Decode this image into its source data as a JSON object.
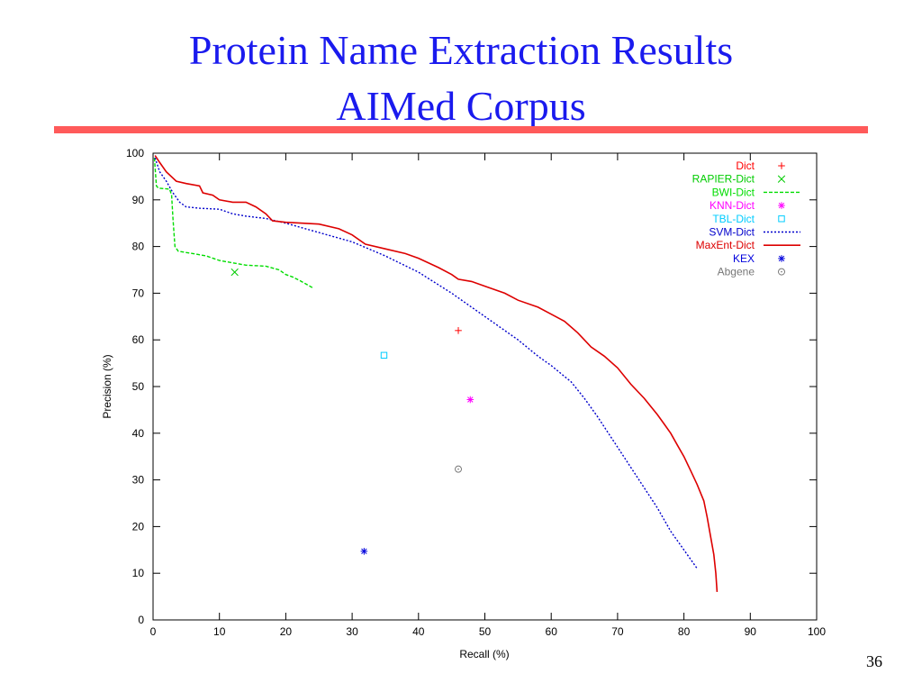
{
  "slide": {
    "title_line1": "Protein Name Extraction Results",
    "title_line2": "AIMed Corpus",
    "slide_number": "36",
    "title_color": "#1a1aee",
    "rule_color": "#ff5a5a"
  },
  "chart_data": {
    "type": "line",
    "xlabel": "Recall (%)",
    "ylabel": "Precision (%)",
    "xlim": [
      0,
      100
    ],
    "ylim": [
      0,
      100
    ],
    "xticks": [
      0,
      10,
      20,
      30,
      40,
      50,
      60,
      70,
      80,
      90,
      100
    ],
    "yticks": [
      0,
      10,
      20,
      30,
      40,
      50,
      60,
      70,
      80,
      90,
      100
    ],
    "grid": false,
    "legend_position": "top-right",
    "series": [
      {
        "name": "Dict",
        "kind": "point",
        "marker": "plus",
        "color": "#ff0000",
        "points": [
          [
            46,
            62
          ]
        ]
      },
      {
        "name": "RAPIER-Dict",
        "kind": "point",
        "marker": "cross",
        "color": "#00cc00",
        "points": [
          [
            12.3,
            74.5
          ]
        ]
      },
      {
        "name": "BWI-Dict",
        "kind": "line",
        "dash": "dashed",
        "color": "#00dd00",
        "points": [
          [
            0.2,
            99
          ],
          [
            0.5,
            93
          ],
          [
            0.8,
            92.5
          ],
          [
            2.5,
            92.3
          ],
          [
            2.8,
            91
          ],
          [
            3,
            86
          ],
          [
            3.3,
            80
          ],
          [
            3.8,
            79
          ],
          [
            6,
            78.5
          ],
          [
            8,
            78
          ],
          [
            10,
            77
          ],
          [
            12,
            76.5
          ],
          [
            14,
            76
          ],
          [
            17,
            75.8
          ],
          [
            19,
            75
          ],
          [
            20,
            74
          ],
          [
            21,
            73.5
          ],
          [
            22,
            72.8
          ],
          [
            23,
            72
          ],
          [
            24,
            71.2
          ]
        ]
      },
      {
        "name": "KNN-Dict",
        "kind": "point",
        "marker": "star",
        "color": "#ff00ff",
        "points": [
          [
            47.8,
            47.2
          ]
        ]
      },
      {
        "name": "TBL-Dict",
        "kind": "point",
        "marker": "square",
        "color": "#00ccff",
        "points": [
          [
            34.8,
            56.7
          ]
        ]
      },
      {
        "name": "SVM-Dict",
        "kind": "line",
        "dash": "dotted",
        "color": "#0000cc",
        "points": [
          [
            0.3,
            99
          ],
          [
            1,
            96
          ],
          [
            2,
            94
          ],
          [
            3,
            91.5
          ],
          [
            4,
            89.5
          ],
          [
            5,
            88.5
          ],
          [
            7,
            88.2
          ],
          [
            10,
            88
          ],
          [
            12,
            87
          ],
          [
            14,
            86.5
          ],
          [
            17,
            86
          ],
          [
            20,
            85
          ],
          [
            25,
            83
          ],
          [
            30,
            81
          ],
          [
            35,
            78
          ],
          [
            40,
            74.5
          ],
          [
            45,
            70
          ],
          [
            50,
            65
          ],
          [
            55,
            60
          ],
          [
            58,
            56.5
          ],
          [
            60,
            54.5
          ],
          [
            63,
            51
          ],
          [
            65,
            47.5
          ],
          [
            67,
            43.5
          ],
          [
            70,
            37
          ],
          [
            73,
            30.5
          ],
          [
            76,
            24
          ],
          [
            78,
            19
          ],
          [
            80,
            15
          ],
          [
            82,
            11
          ]
        ]
      },
      {
        "name": "MaxEnt-Dict",
        "kind": "line",
        "dash": "solid",
        "color": "#dd0000",
        "points": [
          [
            0.3,
            99.5
          ],
          [
            1,
            98
          ],
          [
            2,
            96
          ],
          [
            3.5,
            94
          ],
          [
            5,
            93.5
          ],
          [
            7,
            93
          ],
          [
            7.5,
            91.5
          ],
          [
            9,
            91
          ],
          [
            10,
            90
          ],
          [
            12,
            89.5
          ],
          [
            14,
            89.5
          ],
          [
            15.5,
            88.5
          ],
          [
            17,
            87
          ],
          [
            18,
            85.5
          ],
          [
            20,
            85.2
          ],
          [
            25,
            84.8
          ],
          [
            28,
            83.8
          ],
          [
            30,
            82.5
          ],
          [
            32,
            80.5
          ],
          [
            35,
            79.5
          ],
          [
            38,
            78.5
          ],
          [
            40,
            77.5
          ],
          [
            43,
            75.5
          ],
          [
            45,
            74
          ],
          [
            46,
            73
          ],
          [
            48,
            72.5
          ],
          [
            50,
            71.5
          ],
          [
            53,
            70
          ],
          [
            55,
            68.5
          ],
          [
            58,
            67
          ],
          [
            60,
            65.5
          ],
          [
            62,
            64
          ],
          [
            64,
            61.5
          ],
          [
            66,
            58.5
          ],
          [
            68,
            56.5
          ],
          [
            70,
            54
          ],
          [
            72,
            50.5
          ],
          [
            74,
            47.5
          ],
          [
            76,
            44
          ],
          [
            77,
            42
          ],
          [
            78,
            40
          ],
          [
            79,
            37.5
          ],
          [
            80,
            35
          ],
          [
            81,
            32
          ],
          [
            82,
            29
          ],
          [
            83,
            25.5
          ],
          [
            83.5,
            22
          ],
          [
            84,
            18
          ],
          [
            84.5,
            14
          ],
          [
            84.8,
            10
          ],
          [
            85,
            6
          ]
        ]
      },
      {
        "name": "KEX",
        "kind": "point",
        "marker": "star",
        "color": "#0000dd",
        "points": [
          [
            31.8,
            14.7
          ]
        ]
      },
      {
        "name": "Abgene",
        "kind": "point",
        "marker": "circle",
        "color": "#777777",
        "points": [
          [
            46,
            32.3
          ]
        ]
      }
    ]
  }
}
